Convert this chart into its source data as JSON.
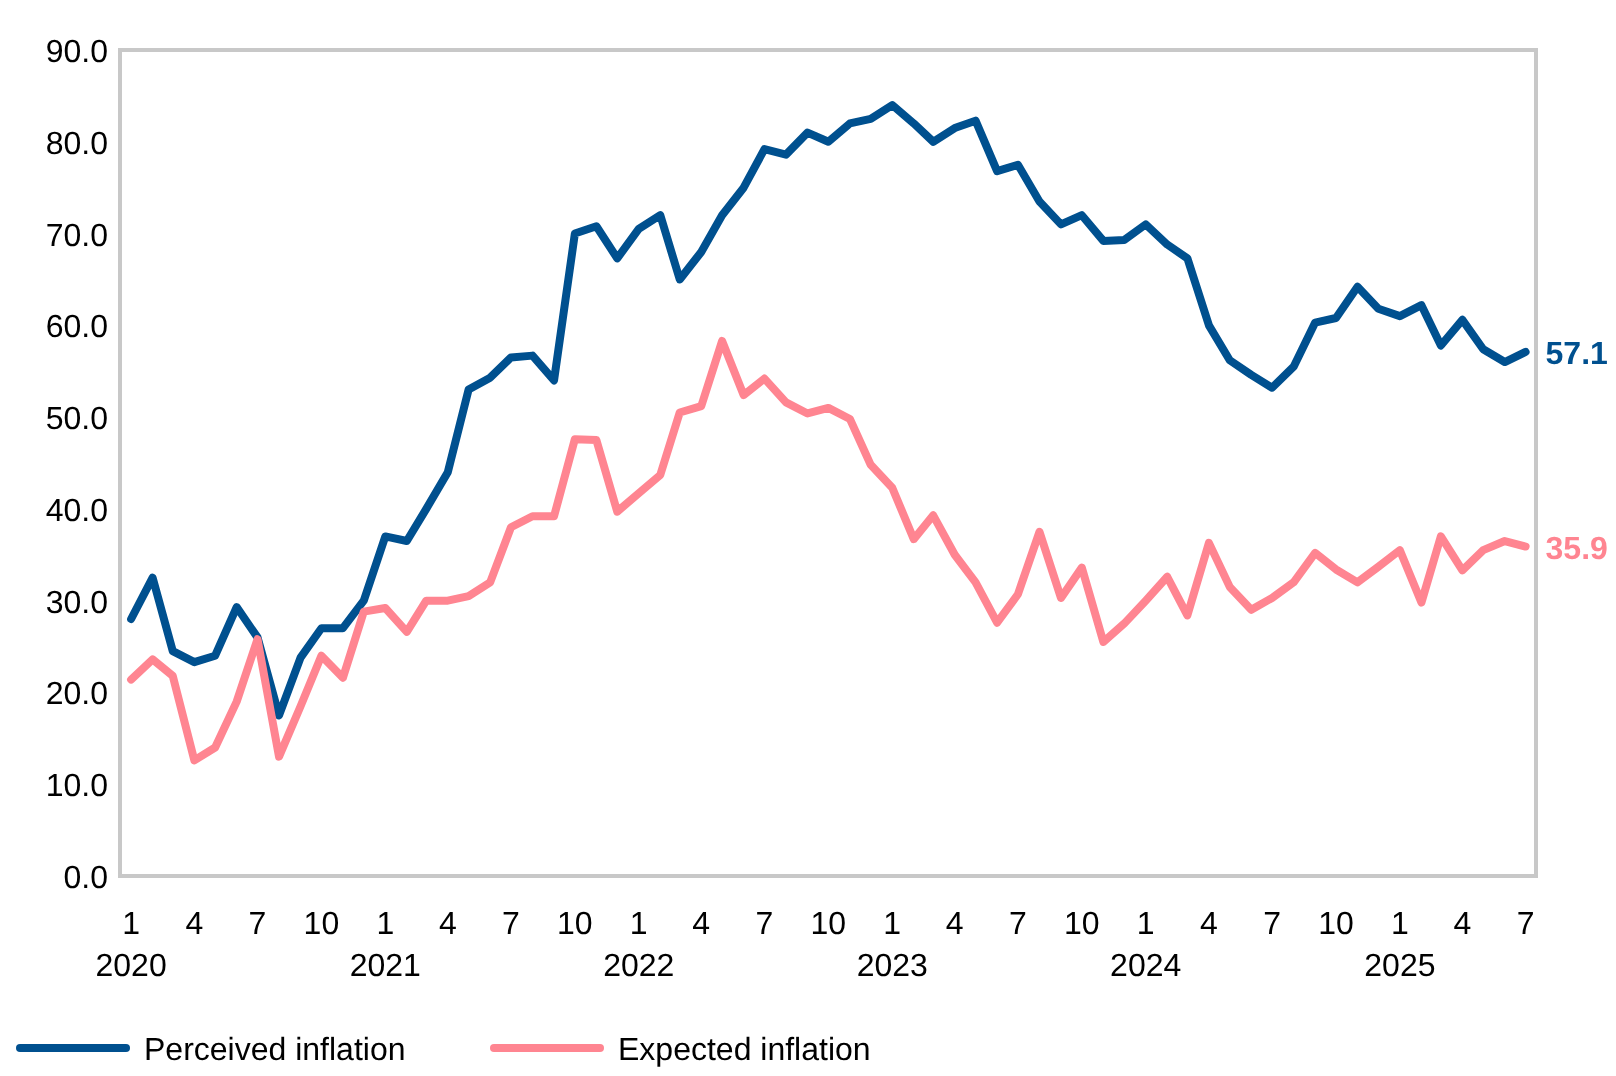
{
  "chart_data": {
    "type": "line",
    "ylim": [
      0,
      90
    ],
    "yticks": [
      {
        "value": 0,
        "label": "0.0"
      },
      {
        "value": 10,
        "label": "10.0"
      },
      {
        "value": 20,
        "label": "20.0"
      },
      {
        "value": 30,
        "label": "30.0"
      },
      {
        "value": 40,
        "label": "40.0"
      },
      {
        "value": 50,
        "label": "50.0"
      },
      {
        "value": 60,
        "label": "60.0"
      },
      {
        "value": 70,
        "label": "70.0"
      },
      {
        "value": 80,
        "label": "80.0"
      },
      {
        "value": 90,
        "label": "90.0"
      }
    ],
    "xlim": [
      "2019-12-16",
      "2025-07-16"
    ],
    "xticks": [
      {
        "value": "2020-01",
        "label": "1\n2020"
      },
      {
        "value": "2020-04",
        "label": "4"
      },
      {
        "value": "2020-07",
        "label": "7"
      },
      {
        "value": "2020-10",
        "label": "10"
      },
      {
        "value": "2021-01",
        "label": "1\n2021"
      },
      {
        "value": "2021-04",
        "label": "4"
      },
      {
        "value": "2021-07",
        "label": "7"
      },
      {
        "value": "2021-10",
        "label": "10"
      },
      {
        "value": "2022-01",
        "label": "1\n2022"
      },
      {
        "value": "2022-04",
        "label": "4"
      },
      {
        "value": "2022-07",
        "label": "7"
      },
      {
        "value": "2022-10",
        "label": "10"
      },
      {
        "value": "2023-01",
        "label": "1\n2023"
      },
      {
        "value": "2023-04",
        "label": "4"
      },
      {
        "value": "2023-07",
        "label": "7"
      },
      {
        "value": "2023-10",
        "label": "10"
      },
      {
        "value": "2024-01",
        "label": "1\n2024"
      },
      {
        "value": "2024-04",
        "label": "4"
      },
      {
        "value": "2024-07",
        "label": "7"
      },
      {
        "value": "2024-10",
        "label": "10"
      },
      {
        "value": "2025-01",
        "label": "1\n2025"
      },
      {
        "value": "2025-04",
        "label": "4"
      },
      {
        "value": "2025-07",
        "label": "7"
      }
    ],
    "x": [
      "2020-01",
      "2020-02",
      "2020-03",
      "2020-04",
      "2020-05",
      "2020-06",
      "2020-07",
      "2020-08",
      "2020-09",
      "2020-10",
      "2020-11",
      "2020-12",
      "2021-01",
      "2021-02",
      "2021-03",
      "2021-04",
      "2021-05",
      "2021-06",
      "2021-07",
      "2021-08",
      "2021-09",
      "2021-10",
      "2021-11",
      "2021-12",
      "2022-01",
      "2022-02",
      "2022-03",
      "2022-04",
      "2022-05",
      "2022-06",
      "2022-07",
      "2022-08",
      "2022-09",
      "2022-10",
      "2022-11",
      "2022-12",
      "2023-01",
      "2023-02",
      "2023-03",
      "2023-04",
      "2023-05",
      "2023-06",
      "2023-07",
      "2023-08",
      "2023-09",
      "2023-10",
      "2023-11",
      "2023-12",
      "2024-01",
      "2024-02",
      "2024-03",
      "2024-04",
      "2024-05",
      "2024-06",
      "2024-07",
      "2024-08",
      "2024-09",
      "2024-10",
      "2024-11",
      "2024-12",
      "2025-01",
      "2025-02",
      "2025-03",
      "2025-04",
      "2025-05",
      "2025-06",
      "2025-07"
    ],
    "series": [
      {
        "name": "Perceived inflation",
        "color": "#00508f",
        "values": [
          28,
          32.5,
          24.5,
          23.3,
          24,
          29.3,
          26,
          17.5,
          23.8,
          27,
          27,
          30,
          37,
          36.5,
          40,
          44,
          53,
          54.3,
          56.5,
          56.7,
          54,
          70,
          70.8,
          67.3,
          70.5,
          72,
          65,
          68,
          72,
          75,
          79.2,
          78.6,
          81,
          80,
          82,
          82.5,
          84,
          82,
          80,
          81.5,
          82.3,
          76.8,
          77.5,
          73.5,
          71,
          72,
          69.2,
          69.3,
          71,
          68.8,
          67.3,
          60,
          56.2,
          54.6,
          53.2,
          55.5,
          60.3,
          60.8,
          64.2,
          61.8,
          61,
          62.2,
          57.8,
          60.6,
          57.4,
          56,
          57.1
        ],
        "value_labels": [
          null,
          null,
          null,
          null,
          null,
          null,
          null,
          null,
          null,
          null,
          null,
          null,
          null,
          null,
          null,
          null,
          null,
          null,
          null,
          null,
          null,
          null,
          null,
          null,
          null,
          null,
          null,
          null,
          null,
          null,
          null,
          null,
          null,
          null,
          null,
          null,
          null,
          null,
          null,
          null,
          null,
          null,
          null,
          null,
          null,
          null,
          null,
          null,
          null,
          null,
          null,
          null,
          null,
          null,
          null,
          null,
          null,
          null,
          null,
          null,
          null,
          null,
          null,
          null,
          null,
          null,
          "57.1"
        ]
      },
      {
        "name": "Expected inflation",
        "color": "#ff8591",
        "values": [
          21.4,
          23.6,
          21.8,
          12.6,
          14,
          19,
          25.8,
          13,
          18.5,
          24,
          21.6,
          28.8,
          29.2,
          26.6,
          30,
          30,
          30.5,
          32,
          38,
          39.2,
          39.2,
          47.6,
          47.5,
          39.7,
          41.7,
          43.7,
          50.5,
          51.2,
          58.3,
          52.4,
          54.2,
          51.6,
          50.4,
          51,
          49.8,
          44.8,
          42.3,
          36.7,
          39.3,
          35,
          32,
          27.6,
          30.7,
          37.5,
          30.3,
          33.6,
          25.5,
          27.5,
          30,
          32.6,
          28.4,
          36.3,
          31.5,
          29,
          30.3,
          32,
          35.2,
          33.4,
          32,
          33.7,
          35.5,
          29.8,
          37,
          33.3,
          35.5,
          36.5,
          35.9
        ],
        "value_labels": [
          null,
          null,
          null,
          null,
          null,
          null,
          null,
          null,
          null,
          null,
          null,
          null,
          null,
          null,
          null,
          null,
          null,
          null,
          null,
          null,
          null,
          null,
          null,
          null,
          null,
          null,
          null,
          null,
          null,
          null,
          null,
          null,
          null,
          null,
          null,
          null,
          null,
          null,
          null,
          null,
          null,
          null,
          null,
          null,
          null,
          null,
          null,
          null,
          null,
          null,
          null,
          null,
          null,
          null,
          null,
          null,
          null,
          null,
          null,
          null,
          null,
          null,
          null,
          null,
          null,
          null,
          "35.9"
        ]
      }
    ],
    "legend": "bottom",
    "grid": false,
    "marker": "none",
    "line_style": "solid"
  }
}
